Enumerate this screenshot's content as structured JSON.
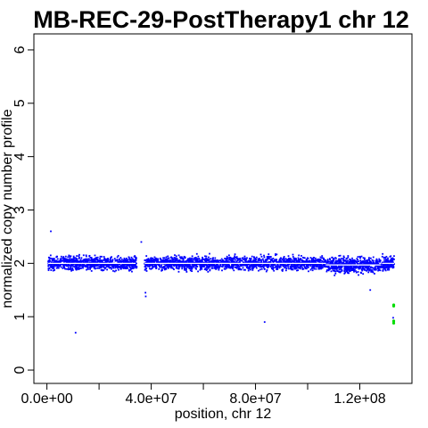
{
  "chart_data": {
    "type": "scatter",
    "title": "MB-REC-29-PostTherapy1 chr 12",
    "xlabel": "position, chr 12",
    "ylabel": "normalized copy number profile",
    "xlim": [
      -5000000,
      140000000
    ],
    "ylim": [
      -0.25,
      6.3
    ],
    "x_ticks": [
      0,
      40000000,
      80000000,
      120000000
    ],
    "x_tick_labels": [
      "0.0e+00",
      "4.0e+07",
      "8.0e+07",
      "1.2e+08"
    ],
    "x_minor_ticks": [
      20000000,
      60000000,
      100000000
    ],
    "y_ticks": [
      0,
      1,
      2,
      3,
      4,
      5,
      6
    ],
    "y_tick_labels": [
      "0",
      "1",
      "2",
      "3",
      "4",
      "5",
      "6"
    ],
    "grid": false,
    "legend": "none",
    "colors": {
      "points": "#0000ff",
      "outlier": "#00dd00",
      "segment": "#ffffff"
    },
    "segments": [
      {
        "x_start": 500000,
        "x_end": 34000000,
        "y": 2.0
      },
      {
        "x_start": 37500000,
        "x_end": 107000000,
        "y": 2.0
      },
      {
        "x_start": 107000000,
        "x_end": 128000000,
        "y": 1.97
      },
      {
        "x_start": 128500000,
        "x_end": 133200000,
        "y": 2.0
      }
    ],
    "data_regions": [
      {
        "x_start": 500000,
        "x_end": 34500000,
        "center": 2.0,
        "spread": 0.12,
        "n": 900
      },
      {
        "x_start": 37500000,
        "x_end": 107000000,
        "center": 2.0,
        "spread": 0.12,
        "n": 1800
      },
      {
        "x_start": 107000000,
        "x_end": 128000000,
        "center": 1.97,
        "spread": 0.14,
        "n": 600
      },
      {
        "x_start": 128500000,
        "x_end": 133200000,
        "center": 2.0,
        "spread": 0.12,
        "n": 160
      }
    ],
    "sparse_points": [
      {
        "x": 11000000,
        "y": 0.7
      },
      {
        "x": 83500000,
        "y": 0.9
      },
      {
        "x": 132800000,
        "y": 0.98
      },
      {
        "x": 36200000,
        "y": 2.4
      },
      {
        "x": 1500000,
        "y": 2.6
      },
      {
        "x": 37800000,
        "y": 1.45
      },
      {
        "x": 37900000,
        "y": 1.38
      },
      {
        "x": 124000000,
        "y": 1.5
      }
    ],
    "green_points": [
      {
        "x": 133000000,
        "y": 1.22
      },
      {
        "x": 133000000,
        "y": 1.2
      },
      {
        "x": 133000000,
        "y": 0.92
      },
      {
        "x": 133000000,
        "y": 0.88
      }
    ]
  }
}
